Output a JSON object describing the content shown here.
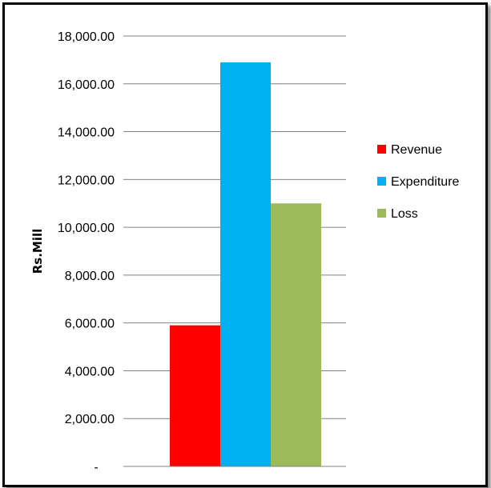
{
  "chart_data": {
    "type": "bar",
    "title": "",
    "xlabel": "",
    "ylabel": "Rs.Mill",
    "ylim": [
      0,
      18000
    ],
    "yticks": [
      0,
      2000,
      4000,
      6000,
      8000,
      10000,
      12000,
      14000,
      16000,
      18000
    ],
    "ytick_labels": [
      "-",
      "2,000.00",
      "4,000.00",
      "6,000.00",
      "8,000.00",
      "10,000.00",
      "12,000.00",
      "14,000.00",
      "16,000.00",
      "18,000.00"
    ],
    "grid": true,
    "legend_position": "right",
    "series": [
      {
        "name": "Revenue",
        "values": [
          5900
        ],
        "color": "#ff0000"
      },
      {
        "name": "Expenditure",
        "values": [
          16900
        ],
        "color": "#00b0f0"
      },
      {
        "name": "Loss",
        "values": [
          11000
        ],
        "color": "#9bbb59"
      }
    ]
  }
}
